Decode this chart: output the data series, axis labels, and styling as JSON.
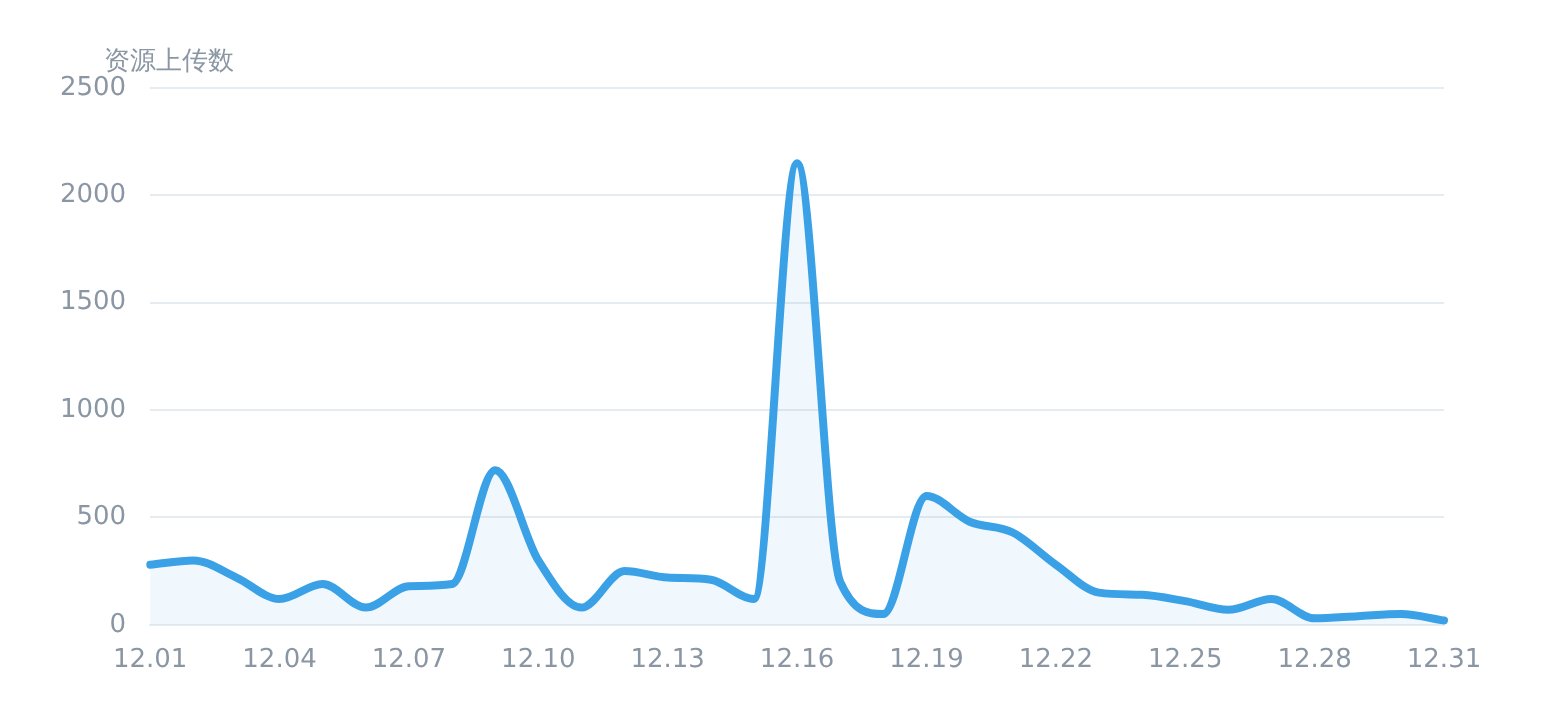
{
  "chart_data": {
    "type": "area",
    "ylabel": "资源上传数",
    "categories": [
      "12.01",
      null,
      null,
      "12.04",
      null,
      null,
      "12.07",
      null,
      null,
      "12.10",
      null,
      null,
      "12.13",
      null,
      null,
      "12.16",
      null,
      null,
      "12.19",
      null,
      null,
      "12.22",
      null,
      null,
      "12.25",
      null,
      null,
      "12.28",
      null,
      null,
      "12.31"
    ],
    "series": [
      {
        "color": "#3ba1e6",
        "values": [
          280,
          300,
          220,
          120,
          190,
          80,
          180,
          190,
          720,
          300,
          80,
          250,
          220,
          210,
          120,
          2150,
          200,
          50,
          600,
          480,
          430,
          280,
          150,
          140,
          110,
          70,
          120,
          30,
          40,
          50,
          20
        ]
      }
    ],
    "ylim": [
      0,
      2500
    ],
    "yticks": [
      0,
      500,
      1000,
      1500,
      2000,
      2500
    ],
    "grid": "y",
    "legend": false,
    "marker": "none"
  }
}
